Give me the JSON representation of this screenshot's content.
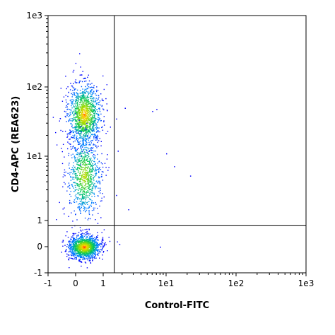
{
  "chart_data": {
    "type": "scatter",
    "title": "",
    "xlabel": "Control-FITC",
    "ylabel": "CD4-APC (REA623)",
    "x_ticks": [
      "-1",
      "0",
      "1",
      "1e1",
      "1e2",
      "1e3"
    ],
    "y_ticks": [
      "-1",
      "0",
      "1",
      "1e1",
      "1e2",
      "1e3"
    ],
    "xlim": [
      -1,
      1000
    ],
    "ylim": [
      -1,
      1000
    ],
    "scale": "biexponential (linear near 0, log above 1)",
    "grid": false,
    "gates": {
      "x_threshold": 1.5,
      "y_threshold": 0.8
    },
    "populations": [
      {
        "name": "",
        "x_center": 0.3,
        "y_center": 40,
        "x_spread": 0.3,
        "y_spread_decades": 0.22,
        "relative_density": 0.9
      },
      {
        "name": "",
        "x_center": 0.3,
        "y_center": 5,
        "x_spread": 0.3,
        "y_spread_decades": 0.32,
        "relative_density": 0.6
      },
      {
        "name": "",
        "x_center": 0.3,
        "y_center": 0.0,
        "x_spread": 0.28,
        "y_spread": 0.22,
        "relative_density": 1.0
      }
    ],
    "outliers": [
      {
        "x": 2.2,
        "y": 50
      },
      {
        "x": 6.0,
        "y": 45
      },
      {
        "x": 7.0,
        "y": 48
      },
      {
        "x": 10,
        "y": 11
      },
      {
        "x": 13,
        "y": 7
      },
      {
        "x": 22,
        "y": 5
      },
      {
        "x": 1.6,
        "y": 2.5
      },
      {
        "x": 2.5,
        "y": 1.5
      },
      {
        "x": 8.0,
        "y": 0.0
      },
      {
        "x": 1.8,
        "y": 0.1
      },
      {
        "x": 1.6,
        "y": 35
      },
      {
        "x": 1.7,
        "y": 12
      }
    ],
    "colors": {
      "low": "#0000ff",
      "mid": "#00c060",
      "high": "#ffd000",
      "peak": "#ff3000",
      "gate_line": "#000000",
      "axis": "#000000"
    }
  }
}
